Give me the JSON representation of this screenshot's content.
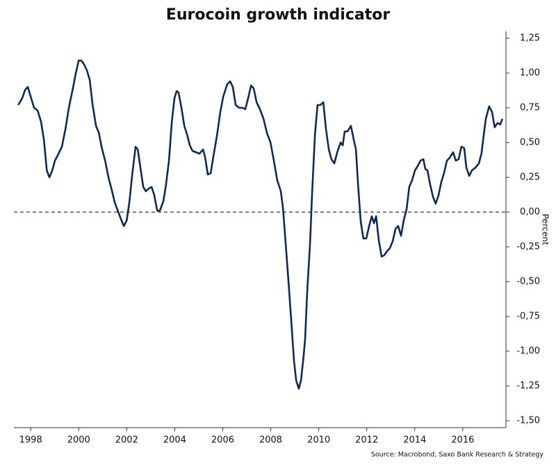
{
  "chart_data": {
    "type": "line",
    "title": "Eurocoin growth indicator",
    "y_axis_label": "Percent",
    "source": "Source: Macrobond, Saxo Bank Research & Strategy",
    "color": "#0d2a52",
    "reference_line": 0,
    "xlim": [
      1997.3,
      2017.8
    ],
    "xticks": [
      1998,
      2000,
      2002,
      2004,
      2006,
      2008,
      2010,
      2012,
      2014,
      2016
    ],
    "ylim": [
      -1.55,
      1.3
    ],
    "yticks": [
      {
        "value": 1.25,
        "label": "1,25"
      },
      {
        "value": 1.0,
        "label": "1,00"
      },
      {
        "value": 0.75,
        "label": "0,75"
      },
      {
        "value": 0.5,
        "label": "0,50"
      },
      {
        "value": 0.25,
        "label": "0,25"
      },
      {
        "value": 0,
        "label": "0,00"
      },
      {
        "value": -0.25,
        "label": "-0,25"
      },
      {
        "value": -0.5,
        "label": "-0,50"
      },
      {
        "value": -0.75,
        "label": "-0,75"
      },
      {
        "value": -1.0,
        "label": "-1,00"
      },
      {
        "value": -1.25,
        "label": "-1,25"
      },
      {
        "value": -1.5,
        "label": "-1,50"
      }
    ],
    "x": [
      1997.48,
      1997.65,
      1997.77,
      1997.88,
      1998.0,
      1998.14,
      1998.29,
      1998.43,
      1998.55,
      1998.67,
      1998.78,
      1998.9,
      1999.01,
      1999.16,
      1999.3,
      1999.45,
      1999.59,
      1999.77,
      1999.88,
      2000.0,
      2000.11,
      2000.23,
      2000.34,
      2000.46,
      2000.58,
      2000.72,
      2000.84,
      2000.95,
      2001.1,
      2001.24,
      2001.39,
      2001.5,
      2001.65,
      2001.76,
      2001.88,
      2002.0,
      2002.11,
      2002.23,
      2002.37,
      2002.46,
      2002.57,
      2002.69,
      2002.8,
      2002.92,
      2003.04,
      2003.15,
      2003.27,
      2003.38,
      2003.53,
      2003.64,
      2003.76,
      2003.88,
      2003.99,
      2004.08,
      2004.16,
      2004.28,
      2004.4,
      2004.51,
      2004.63,
      2004.74,
      2004.89,
      2005.03,
      2005.18,
      2005.26,
      2005.38,
      2005.5,
      2005.61,
      2005.76,
      2005.9,
      2006.02,
      2006.19,
      2006.31,
      2006.42,
      2006.54,
      2006.68,
      2006.83,
      2006.94,
      2007.06,
      2007.18,
      2007.29,
      2007.41,
      2007.55,
      2007.7,
      2007.84,
      2007.99,
      2008.13,
      2008.27,
      2008.42,
      2008.51,
      2008.62,
      2008.74,
      2008.85,
      2008.97,
      2009.06,
      2009.17,
      2009.26,
      2009.35,
      2009.43,
      2009.52,
      2009.64,
      2009.72,
      2009.84,
      2009.95,
      2010.07,
      2010.19,
      2010.3,
      2010.42,
      2010.53,
      2010.65,
      2010.77,
      2010.91,
      2011.0,
      2011.08,
      2011.2,
      2011.34,
      2011.46,
      2011.55,
      2011.63,
      2011.75,
      2011.86,
      2011.98,
      2012.1,
      2012.21,
      2012.3,
      2012.39,
      2012.5,
      2012.62,
      2012.73,
      2012.85,
      2012.96,
      2013.08,
      2013.2,
      2013.31,
      2013.43,
      2013.54,
      2013.66,
      2013.77,
      2013.89,
      2014.01,
      2014.12,
      2014.24,
      2014.36,
      2014.44,
      2014.53,
      2014.64,
      2014.76,
      2014.87,
      2014.99,
      2015.11,
      2015.22,
      2015.34,
      2015.45,
      2015.6,
      2015.71,
      2015.83,
      2015.94,
      2016.06,
      2016.15,
      2016.27,
      2016.38,
      2016.53,
      2016.67,
      2016.78,
      2016.87,
      2016.96,
      2017.1,
      2017.22,
      2017.33,
      2017.45,
      2017.56,
      2017.65
    ],
    "values": [
      0.77,
      0.82,
      0.88,
      0.9,
      0.83,
      0.75,
      0.73,
      0.65,
      0.52,
      0.3,
      0.25,
      0.3,
      0.37,
      0.42,
      0.47,
      0.6,
      0.75,
      0.9,
      1.0,
      1.09,
      1.09,
      1.06,
      1.02,
      0.95,
      0.77,
      0.62,
      0.57,
      0.47,
      0.37,
      0.25,
      0.15,
      0.07,
      0.0,
      -0.05,
      -0.1,
      -0.06,
      0.07,
      0.27,
      0.47,
      0.45,
      0.32,
      0.18,
      0.15,
      0.17,
      0.18,
      0.12,
      0.01,
      0.01,
      0.08,
      0.2,
      0.37,
      0.65,
      0.82,
      0.87,
      0.86,
      0.75,
      0.62,
      0.56,
      0.48,
      0.44,
      0.43,
      0.42,
      0.45,
      0.4,
      0.27,
      0.28,
      0.4,
      0.55,
      0.72,
      0.83,
      0.92,
      0.94,
      0.9,
      0.77,
      0.75,
      0.75,
      0.74,
      0.82,
      0.91,
      0.89,
      0.79,
      0.74,
      0.67,
      0.57,
      0.5,
      0.37,
      0.23,
      0.15,
      0.03,
      -0.22,
      -0.5,
      -0.77,
      -1.07,
      -1.21,
      -1.27,
      -1.21,
      -1.07,
      -0.92,
      -0.57,
      -0.22,
      0.12,
      0.55,
      0.77,
      0.77,
      0.79,
      0.6,
      0.45,
      0.38,
      0.35,
      0.43,
      0.5,
      0.48,
      0.58,
      0.58,
      0.62,
      0.52,
      0.45,
      0.22,
      -0.07,
      -0.19,
      -0.19,
      -0.1,
      -0.03,
      -0.08,
      -0.03,
      -0.2,
      -0.32,
      -0.31,
      -0.28,
      -0.26,
      -0.21,
      -0.12,
      -0.1,
      -0.17,
      -0.06,
      0.02,
      0.18,
      0.23,
      0.3,
      0.33,
      0.37,
      0.38,
      0.31,
      0.3,
      0.2,
      0.11,
      0.06,
      0.12,
      0.22,
      0.28,
      0.37,
      0.39,
      0.43,
      0.37,
      0.38,
      0.47,
      0.46,
      0.32,
      0.26,
      0.3,
      0.32,
      0.35,
      0.42,
      0.55,
      0.67,
      0.76,
      0.72,
      0.61,
      0.64,
      0.63,
      0.67
    ]
  }
}
